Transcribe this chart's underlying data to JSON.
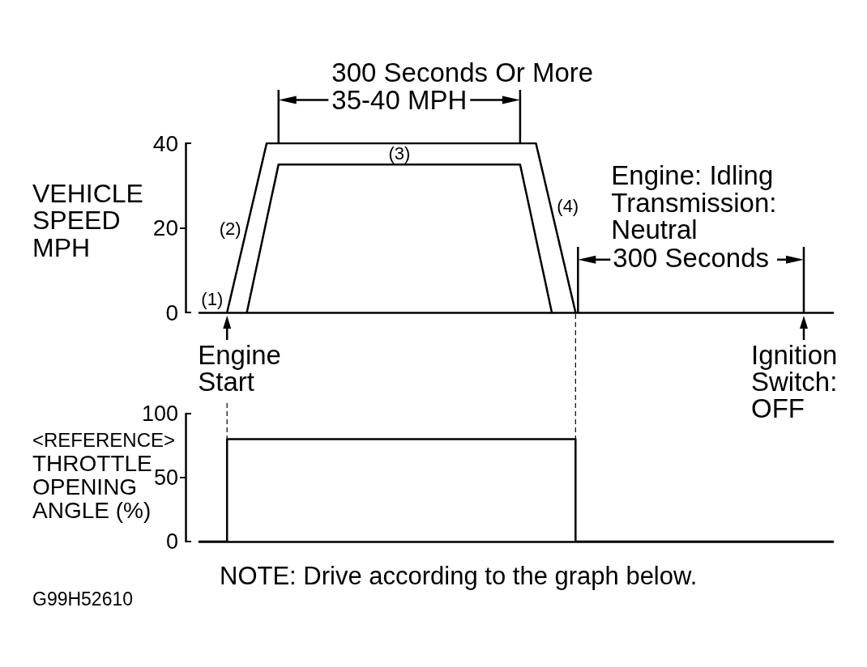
{
  "chart_data": [
    {
      "type": "line",
      "ylabel": "VEHICLE\nSPEED\nMPH",
      "categories": [
        null,
        null,
        null,
        null,
        null,
        null,
        null,
        null,
        null,
        null,
        null,
        null,
        null,
        null,
        null,
        null,
        null,
        null,
        null,
        null,
        null,
        null,
        null,
        null,
        null,
        null,
        null,
        null,
        null,
        null,
        null,
        null,
        null,
        null,
        null,
        null,
        null,
        null,
        null,
        null,
        null,
        null,
        null,
        null,
        null,
        null,
        null,
        null,
        null,
        null,
        null,
        null,
        null,
        null,
        null,
        null,
        null,
        null,
        null,
        null,
        null,
        null,
        null,
        null,
        null,
        null,
        null,
        null,
        null,
        null,
        null,
        null,
        null,
        null,
        null,
        null,
        null,
        null,
        null,
        null,
        null,
        null,
        null,
        null,
        null,
        null,
        null,
        null,
        null,
        null,
        null,
        null,
        null,
        null,
        null,
        null,
        null,
        null,
        null,
        null,
        null,
        null,
        null,
        null,
        null,
        null,
        null,
        null,
        null,
        null,
        null,
        null,
        null,
        null,
        null,
        null,
        null,
        null,
        null,
        null,
        null,
        null,
        null,
        null,
        null,
        null,
        null,
        null,
        null,
        null,
        null,
        null,
        null,
        null,
        null,
        null,
        null,
        null,
        null,
        null,
        null,
        null,
        null,
        null,
        null,
        null,
        null,
        null,
        null,
        null,
        null,
        null,
        null,
        null,
        null,
        null,
        null,
        null,
        null,
        null,
        null
      ],
      "series": [
        {
          "color": "#000000",
          "values": [
            null,
            null,
            null,
            null,
            null,
            null,
            null,
            0,
            4,
            8,
            12,
            16,
            20,
            24,
            28,
            32,
            36,
            40,
            40,
            40,
            40,
            40,
            40,
            40,
            40,
            40,
            40,
            40,
            40,
            40,
            40,
            40,
            40,
            40,
            40,
            40,
            40,
            40,
            40,
            40,
            40,
            40,
            40,
            40,
            40,
            40,
            40,
            40,
            40,
            40,
            40,
            40,
            40,
            40,
            40,
            40,
            40,
            40,
            40,
            40,
            40,
            40,
            40,
            40,
            40,
            40,
            40,
            40,
            40,
            40,
            40,
            40,
            40,
            40,
            40,
            40,
            40,
            40,
            40,
            40,
            40,
            40,
            40,
            40,
            40,
            40,
            36,
            32,
            28,
            24,
            20,
            16,
            12,
            8,
            4,
            0,
            null,
            null,
            null,
            null,
            null,
            null,
            null,
            null,
            null,
            null,
            null,
            null,
            null,
            null,
            null,
            null,
            null,
            null,
            null,
            null,
            null,
            null,
            null,
            null,
            null,
            null,
            null,
            null,
            null,
            null,
            null,
            null,
            null,
            null,
            null,
            null,
            null,
            null,
            null,
            null,
            null,
            null,
            null,
            null,
            null,
            null,
            null,
            null,
            null,
            null,
            null,
            null,
            null,
            null,
            null,
            null,
            null,
            null,
            null,
            null,
            null,
            null,
            null,
            null,
            null
          ]
        },
        {
          "color": "#000000",
          "values": [
            null,
            null,
            null,
            null,
            null,
            null,
            null,
            null,
            null,
            null,
            null,
            null,
            0,
            4.4,
            8.8,
            13.1,
            17.5,
            21.9,
            26.3,
            30.6,
            35,
            35,
            35,
            35,
            35,
            35,
            35,
            35,
            35,
            35,
            35,
            35,
            35,
            35,
            35,
            35,
            35,
            35,
            35,
            35,
            35,
            35,
            35,
            35,
            35,
            35,
            35,
            35,
            35,
            35,
            35,
            35,
            35,
            35,
            35,
            35,
            35,
            35,
            35,
            35,
            35,
            35,
            35,
            35,
            35,
            35,
            35,
            35,
            35,
            35,
            35,
            35,
            35,
            35,
            35,
            35,
            35,
            35,
            35,
            35,
            35,
            35,
            30.6,
            26.3,
            21.9,
            17.5,
            13.1,
            8.8,
            4.4,
            0,
            null,
            null,
            null,
            null,
            null,
            null,
            null,
            null,
            null,
            null,
            null,
            null,
            null,
            null,
            null,
            null,
            null,
            null,
            null,
            null,
            null,
            null,
            null,
            null,
            null,
            null,
            null,
            null,
            null,
            null,
            null,
            null,
            null,
            null,
            null,
            null,
            null,
            null,
            null,
            null,
            null,
            null,
            null,
            null,
            null,
            null,
            null,
            null,
            null,
            null,
            null,
            null,
            null,
            null,
            null,
            null,
            null,
            null,
            null,
            null,
            null,
            null,
            null,
            null,
            null,
            null,
            null,
            null,
            null,
            null,
            null
          ]
        }
      ],
      "ylim": [
        0,
        40
      ],
      "yticks": [
        0,
        20,
        40
      ],
      "tick_labels": "y",
      "marker": "none",
      "annotations": [
        "300 Seconds Or More",
        "35-40 MPH",
        "(1)",
        "(2)",
        "(3)",
        "(4)",
        "Engine: Idling\nTransmission:\nNeutral",
        "300 Seconds",
        "Engine\nStart",
        "Ignition\nSwitch:\nOFF"
      ]
    },
    {
      "type": "step",
      "ylabel": "<REFERENCE>\nTHROTTLE\nOPENING\nANGLE (%)",
      "categories": [
        null,
        null,
        null,
        null,
        null,
        null,
        null,
        null,
        null,
        null,
        null,
        null,
        null,
        null,
        null,
        null,
        null,
        null,
        null,
        null,
        null,
        null,
        null,
        null,
        null,
        null,
        null,
        null,
        null,
        null,
        null,
        null,
        null,
        null,
        null,
        null,
        null,
        null,
        null,
        null,
        null,
        null,
        null,
        null,
        null,
        null,
        null,
        null,
        null,
        null,
        null,
        null,
        null,
        null,
        null,
        null,
        null,
        null,
        null,
        null,
        null,
        null,
        null,
        null,
        null,
        null,
        null,
        null,
        null,
        null,
        null,
        null,
        null,
        null,
        null,
        null,
        null,
        null,
        null,
        null,
        null,
        null,
        null,
        null,
        null,
        null,
        null,
        null,
        null,
        null,
        null,
        null,
        null,
        null,
        null,
        null,
        null,
        null,
        null,
        null,
        null,
        null,
        null,
        null,
        null,
        null,
        null,
        null,
        null,
        null,
        null,
        null,
        null,
        null,
        null,
        null,
        null,
        null,
        null,
        null,
        null,
        null,
        null,
        null,
        null,
        null,
        null,
        null,
        null,
        null,
        null,
        null,
        null,
        null,
        null,
        null,
        null,
        null,
        null,
        null,
        null,
        null,
        null,
        null,
        null,
        null,
        null,
        null,
        null,
        null,
        null,
        null,
        null,
        null,
        null,
        null,
        null,
        null,
        null,
        null,
        null
      ],
      "series": [
        {
          "color": "#000000",
          "values": [
            0,
            0,
            0,
            0,
            0,
            0,
            0,
            80,
            80,
            80,
            80,
            80,
            80,
            80,
            80,
            80,
            80,
            80,
            80,
            80,
            80,
            80,
            80,
            80,
            80,
            80,
            80,
            80,
            80,
            80,
            80,
            80,
            80,
            80,
            80,
            80,
            80,
            80,
            80,
            80,
            80,
            80,
            80,
            80,
            80,
            80,
            80,
            80,
            80,
            80,
            80,
            80,
            80,
            80,
            80,
            80,
            80,
            80,
            80,
            80,
            80,
            80,
            80,
            80,
            80,
            80,
            80,
            80,
            80,
            80,
            80,
            80,
            80,
            80,
            80,
            80,
            80,
            80,
            80,
            80,
            80,
            80,
            80,
            80,
            80,
            80,
            80,
            80,
            80,
            80,
            80,
            80,
            80,
            80,
            80,
            0,
            0,
            0,
            0,
            0,
            0,
            0,
            0,
            0,
            0,
            0,
            0,
            0,
            0,
            0,
            0,
            0,
            0,
            0,
            0,
            0,
            0,
            0,
            0,
            0,
            0,
            0,
            0,
            0,
            0,
            0,
            0,
            0,
            0,
            0,
            0,
            0,
            0,
            0,
            0,
            0,
            0,
            0,
            0,
            0,
            0,
            0,
            0,
            0,
            0,
            0,
            0,
            0,
            0,
            0,
            0,
            0,
            0,
            0,
            0,
            0,
            0,
            0,
            0,
            0,
            0
          ]
        }
      ],
      "ylim": [
        0,
        100
      ],
      "yticks": [
        0,
        50,
        100
      ],
      "tick_labels": "y",
      "marker": "none",
      "annotations": [
        "NOTE: Drive according to the graph below.",
        "G99H52610"
      ]
    }
  ]
}
